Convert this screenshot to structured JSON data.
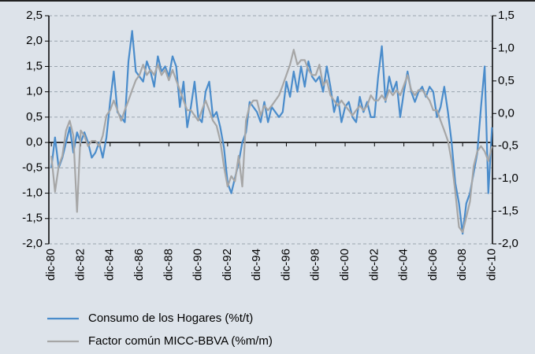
{
  "chart_data": {
    "type": "line",
    "x": [
      1980.92,
      1981.17,
      1981.42,
      1981.67,
      1981.92,
      1982.17,
      1982.42,
      1982.67,
      1982.92,
      1983.17,
      1983.42,
      1983.67,
      1983.92,
      1984.17,
      1984.42,
      1984.67,
      1984.92,
      1985.17,
      1985.42,
      1985.67,
      1985.92,
      1986.17,
      1986.42,
      1986.67,
      1986.92,
      1987.17,
      1987.42,
      1987.67,
      1987.92,
      1988.17,
      1988.42,
      1988.67,
      1988.92,
      1989.17,
      1989.42,
      1989.67,
      1989.92,
      1990.17,
      1990.42,
      1990.67,
      1990.92,
      1991.17,
      1991.42,
      1991.67,
      1991.92,
      1992.17,
      1992.42,
      1992.67,
      1992.92,
      1993.17,
      1993.42,
      1993.67,
      1993.92,
      1994.17,
      1994.42,
      1994.67,
      1994.92,
      1995.17,
      1995.42,
      1995.67,
      1995.92,
      1996.17,
      1996.42,
      1996.67,
      1996.92,
      1997.17,
      1997.42,
      1997.67,
      1997.92,
      1998.17,
      1998.42,
      1998.67,
      1998.92,
      1999.17,
      1999.42,
      1999.67,
      1999.92,
      2000.17,
      2000.42,
      2000.67,
      2000.92,
      2001.17,
      2001.42,
      2001.67,
      2001.92,
      2002.17,
      2002.42,
      2002.67,
      2002.92,
      2003.17,
      2003.42,
      2003.67,
      2003.92,
      2004.17,
      2004.42,
      2004.67,
      2004.92,
      2005.17,
      2005.42,
      2005.67,
      2005.92,
      2006.17,
      2006.42,
      2006.67,
      2006.92,
      2007.17,
      2007.42,
      2007.67,
      2007.92,
      2008.17,
      2008.42,
      2008.67,
      2008.92,
      2009.17,
      2009.42,
      2009.67,
      2009.92,
      2010.17,
      2010.42,
      2010.67,
      2010.92
    ],
    "series": [
      {
        "name": "Consumo de los Hogares (%t/t)",
        "color": "#4a8ccb",
        "axis": "y",
        "values": [
          -0.5,
          0.1,
          -0.5,
          -0.3,
          0.0,
          0.3,
          -0.2,
          0.2,
          0.0,
          0.2,
          0.0,
          -0.3,
          -0.2,
          0.0,
          -0.3,
          0.1,
          0.8,
          1.4,
          0.6,
          0.5,
          0.4,
          1.6,
          2.2,
          1.4,
          1.3,
          1.2,
          1.6,
          1.4,
          1.1,
          1.7,
          1.4,
          1.5,
          1.3,
          1.7,
          1.5,
          0.7,
          1.2,
          0.3,
          0.7,
          1.2,
          0.5,
          0.4,
          1.0,
          1.2,
          0.5,
          0.6,
          0.3,
          -0.1,
          -0.8,
          -1.0,
          -0.7,
          -0.4,
          0.0,
          0.2,
          0.8,
          0.7,
          0.6,
          0.4,
          0.8,
          0.4,
          0.7,
          0.6,
          0.5,
          0.6,
          1.2,
          0.9,
          1.4,
          1.0,
          1.5,
          1.1,
          1.6,
          1.3,
          1.2,
          1.3,
          1.0,
          1.5,
          1.1,
          0.6,
          0.9,
          0.4,
          0.7,
          0.8,
          0.5,
          0.4,
          0.9,
          0.6,
          0.8,
          0.5,
          0.5,
          1.3,
          1.9,
          0.8,
          1.3,
          1.0,
          1.2,
          0.5,
          1.0,
          1.4,
          1.0,
          0.8,
          1.0,
          1.1,
          0.9,
          1.1,
          1.0,
          0.5,
          0.7,
          1.1,
          0.6,
          0.0,
          -0.8,
          -1.2,
          -1.8,
          -1.2,
          -1.0,
          -0.6,
          -0.2,
          0.7,
          1.5,
          -1.0,
          0.3
        ]
      },
      {
        "name": "Factor común MICC-BBVA (%m/m)",
        "color": "#a6a6a6",
        "axis": "y2",
        "values": [
          -0.65,
          -1.2,
          -0.81,
          -0.65,
          -0.26,
          -0.11,
          -0.34,
          -1.51,
          -0.26,
          -0.34,
          -0.5,
          -0.42,
          -0.42,
          -0.5,
          -0.34,
          -0.03,
          0.05,
          0.2,
          0.05,
          -0.11,
          0.05,
          0.2,
          0.36,
          0.51,
          0.59,
          0.75,
          0.59,
          0.67,
          0.59,
          0.75,
          0.59,
          0.67,
          0.51,
          0.67,
          0.51,
          0.36,
          0.2,
          0.05,
          0.05,
          -0.03,
          -0.11,
          0.05,
          0.2,
          0.05,
          -0.11,
          -0.19,
          -0.42,
          -0.81,
          -1.12,
          -0.96,
          -1.04,
          -0.65,
          -1.12,
          -0.11,
          0.12,
          0.2,
          0.2,
          -0.03,
          0.12,
          0.05,
          0.12,
          0.2,
          0.28,
          0.43,
          0.59,
          0.75,
          0.98,
          0.75,
          0.82,
          0.82,
          0.67,
          0.59,
          0.59,
          0.75,
          0.43,
          0.51,
          0.28,
          0.2,
          0.12,
          0.2,
          0.12,
          0.05,
          -0.03,
          0.05,
          0.12,
          0.05,
          0.12,
          0.28,
          0.2,
          0.2,
          0.28,
          0.2,
          0.36,
          0.28,
          0.36,
          0.28,
          0.43,
          0.59,
          0.36,
          0.28,
          0.36,
          0.36,
          0.28,
          0.2,
          0.05,
          0.05,
          -0.11,
          -0.26,
          -0.42,
          -0.73,
          -1.2,
          -1.74,
          -1.82,
          -1.59,
          -1.35,
          -0.81,
          -0.58,
          -0.5,
          -0.58,
          -0.73,
          -0.5
        ]
      }
    ],
    "xlim": [
      1980.75,
      2010.95
    ],
    "xticks": [
      {
        "value": 1980.92,
        "label": "dic-80"
      },
      {
        "value": 1982.92,
        "label": "dic-82"
      },
      {
        "value": 1984.92,
        "label": "dic-84"
      },
      {
        "value": 1986.92,
        "label": "dic-86"
      },
      {
        "value": 1988.92,
        "label": "dic-88"
      },
      {
        "value": 1990.92,
        "label": "dic-90"
      },
      {
        "value": 1992.92,
        "label": "dic-92"
      },
      {
        "value": 1994.92,
        "label": "dic-94"
      },
      {
        "value": 1996.92,
        "label": "dic-96"
      },
      {
        "value": 1998.92,
        "label": "dic-98"
      },
      {
        "value": 2000.92,
        "label": "dic-00"
      },
      {
        "value": 2002.92,
        "label": "dic-02"
      },
      {
        "value": 2004.92,
        "label": "dic-04"
      },
      {
        "value": 2006.92,
        "label": "dic-06"
      },
      {
        "value": 2008.92,
        "label": "dic-08"
      },
      {
        "value": 2010.92,
        "label": "dic-10"
      }
    ],
    "ylim": [
      -2.0,
      2.5
    ],
    "yticks": [
      {
        "value": -2.0,
        "label": "-2,0"
      },
      {
        "value": -1.5,
        "label": "-1,5"
      },
      {
        "value": -1.0,
        "label": "-1,0"
      },
      {
        "value": -0.5,
        "label": "-0,5"
      },
      {
        "value": 0.0,
        "label": "0,0"
      },
      {
        "value": 0.5,
        "label": "0,5"
      },
      {
        "value": 1.0,
        "label": "1,0"
      },
      {
        "value": 1.5,
        "label": "1,5"
      },
      {
        "value": 2.0,
        "label": "2,0"
      },
      {
        "value": 2.5,
        "label": "2,5"
      }
    ],
    "y2lim": [
      -2.0,
      1.5
    ],
    "y2ticks": [
      {
        "value": -2.0,
        "label": "-2,0"
      },
      {
        "value": -1.5,
        "label": "-1,5"
      },
      {
        "value": -1.0,
        "label": "-1,0"
      },
      {
        "value": -0.5,
        "label": "-0,5"
      },
      {
        "value": 0.0,
        "label": "0,0"
      },
      {
        "value": 0.5,
        "label": "0,5"
      },
      {
        "value": 1.0,
        "label": "1,0"
      },
      {
        "value": 1.5,
        "label": "1,5"
      }
    ],
    "grid": true,
    "legend": "bottom"
  }
}
